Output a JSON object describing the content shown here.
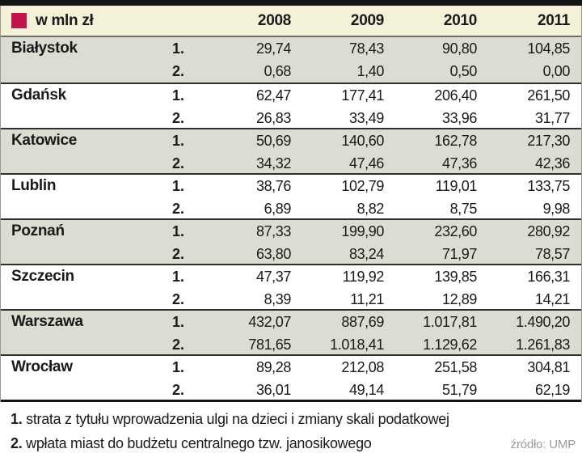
{
  "header": {
    "unit_label": "w mln zł",
    "years": [
      "2008",
      "2009",
      "2010",
      "2011"
    ],
    "legend_color": "#c3154a"
  },
  "table": {
    "row_labels": [
      "1.",
      "2."
    ],
    "cities": [
      {
        "name": "Białystok",
        "row1": [
          "29,74",
          "78,43",
          "90,80",
          "104,85"
        ],
        "row2": [
          "0,68",
          "1,40",
          "0,50",
          "0,00"
        ]
      },
      {
        "name": "Gdańsk",
        "row1": [
          "62,47",
          "177,41",
          "206,40",
          "261,50"
        ],
        "row2": [
          "26,83",
          "33,49",
          "33,96",
          "31,77"
        ]
      },
      {
        "name": "Katowice",
        "row1": [
          "50,69",
          "140,60",
          "162,78",
          "217,30"
        ],
        "row2": [
          "34,32",
          "47,46",
          "47,36",
          "42,36"
        ]
      },
      {
        "name": "Lublin",
        "row1": [
          "38,76",
          "102,79",
          "119,01",
          "133,75"
        ],
        "row2": [
          "6,89",
          "8,82",
          "8,75",
          "9,98"
        ]
      },
      {
        "name": "Poznań",
        "row1": [
          "87,33",
          "199,90",
          "232,60",
          "280,92"
        ],
        "row2": [
          "63,80",
          "83,24",
          "71,97",
          "78,57"
        ]
      },
      {
        "name": "Szczecin",
        "row1": [
          "47,37",
          "119,92",
          "139,85",
          "166,31"
        ],
        "row2": [
          "8,39",
          "11,21",
          "12,89",
          "14,21"
        ]
      },
      {
        "name": "Warszawa",
        "row1": [
          "432,07",
          "887,69",
          "1.017,81",
          "1.490,20"
        ],
        "row2": [
          "781,65",
          "1.018,41",
          "1.129,62",
          "1.261,83"
        ]
      },
      {
        "name": "Wrocław",
        "row1": [
          "89,28",
          "212,08",
          "251,58",
          "304,81"
        ],
        "row2": [
          "36,01",
          "49,14",
          "51,79",
          "62,19"
        ]
      }
    ]
  },
  "footer": {
    "note1_label": "1.",
    "note1_text": "strata z tytułu wprowadzenia ulgi na dzieci i zmiany skali podatkowej",
    "note2_label": "2.",
    "note2_text": "wpłata miast do budżetu centralnego tzw. janosikowego",
    "source": "źródło: UMP"
  },
  "chart_data": {
    "type": "table",
    "title": "w mln zł",
    "columns": [
      "2008",
      "2009",
      "2010",
      "2011"
    ],
    "row_definitions": {
      "1.": "strata z tytułu wprowadzenia ulgi na dzieci i zmiany skali podatkowej",
      "2.": "wpłata miast do budżetu centralnego tzw. janosikowego"
    },
    "rows": [
      {
        "city": "Białystok",
        "series1": [
          29.74,
          78.43,
          90.8,
          104.85
        ],
        "series2": [
          0.68,
          1.4,
          0.5,
          0.0
        ]
      },
      {
        "city": "Gdańsk",
        "series1": [
          62.47,
          177.41,
          206.4,
          261.5
        ],
        "series2": [
          26.83,
          33.49,
          33.96,
          31.77
        ]
      },
      {
        "city": "Katowice",
        "series1": [
          50.69,
          140.6,
          162.78,
          217.3
        ],
        "series2": [
          34.32,
          47.46,
          47.36,
          42.36
        ]
      },
      {
        "city": "Lublin",
        "series1": [
          38.76,
          102.79,
          119.01,
          133.75
        ],
        "series2": [
          6.89,
          8.82,
          8.75,
          9.98
        ]
      },
      {
        "city": "Poznań",
        "series1": [
          87.33,
          199.9,
          232.6,
          280.92
        ],
        "series2": [
          63.8,
          83.24,
          71.97,
          78.57
        ]
      },
      {
        "city": "Szczecin",
        "series1": [
          47.37,
          119.92,
          139.85,
          166.31
        ],
        "series2": [
          8.39,
          11.21,
          12.89,
          14.21
        ]
      },
      {
        "city": "Warszawa",
        "series1": [
          432.07,
          887.69,
          1017.81,
          1490.2
        ],
        "series2": [
          781.65,
          1018.41,
          1129.62,
          1261.83
        ]
      },
      {
        "city": "Wrocław",
        "series1": [
          89.28,
          212.08,
          251.58,
          304.81
        ],
        "series2": [
          36.01,
          49.14,
          51.79,
          62.19
        ]
      }
    ],
    "source": "źródło: UMP",
    "unit": "mln zł"
  }
}
